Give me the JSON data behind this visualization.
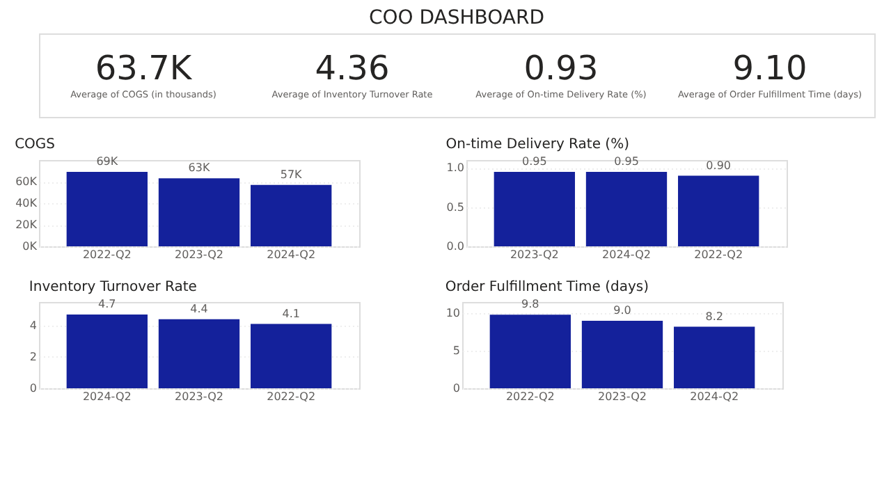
{
  "chart_data": [
    {
      "type": "other",
      "title": "COO DASHBOARD",
      "annotations": [
        "63.7K",
        "Average of COGS (in thousands)",
        "4.36",
        "Average of Inventory Turnover Rate",
        "0.93",
        "Average of On-time Delivery Rate (%)",
        "9.10",
        "Average of Order Fulfillment Time (days)"
      ]
    },
    {
      "type": "bar",
      "title": "COGS",
      "categories": [
        "2022-Q2",
        "2023-Q2",
        "2024-Q2"
      ],
      "values": [
        69000,
        63000,
        57000
      ],
      "value_labels": [
        "69K",
        "63K",
        "57K"
      ],
      "color": "#14219b",
      "ylim": [
        0,
        80000
      ],
      "yticks": [
        {
          "value": 0,
          "label": "0K"
        },
        {
          "value": 20000,
          "label": "20K"
        },
        {
          "value": 40000,
          "label": "40K"
        },
        {
          "value": 60000,
          "label": "60K"
        }
      ],
      "grid": "y"
    },
    {
      "type": "bar",
      "title": "On-time Delivery Rate (%)",
      "categories": [
        "2023-Q2",
        "2024-Q2",
        "2022-Q2"
      ],
      "values": [
        0.95,
        0.95,
        0.9
      ],
      "value_labels": [
        "0.95",
        "0.95",
        "0.90"
      ],
      "color": "#14219b",
      "ylim": [
        0,
        1.1
      ],
      "yticks": [
        {
          "value": 0,
          "label": "0.0"
        },
        0.5,
        {
          "value": 1,
          "label": "1.0"
        }
      ],
      "grid": "y"
    },
    {
      "type": "bar",
      "title": "Inventory Turnover Rate",
      "categories": [
        "2024-Q2",
        "2023-Q2",
        "2022-Q2"
      ],
      "values": [
        4.7,
        4.4,
        4.1
      ],
      "value_labels": [
        "4.7",
        "4.4",
        "4.1"
      ],
      "color": "#14219b",
      "ylim": [
        0,
        5.5
      ],
      "yticks": [
        0,
        2,
        4
      ],
      "grid": "y"
    },
    {
      "type": "bar",
      "title": "Order Fulfillment Time (days)",
      "categories": [
        "2022-Q2",
        "2023-Q2",
        "2024-Q2"
      ],
      "values": [
        9.8,
        9.0,
        8.2
      ],
      "value_labels": [
        "9.8",
        "9.0",
        "8.2"
      ],
      "color": "#14219b",
      "ylim": [
        0,
        11.5
      ],
      "yticks": [
        0,
        5,
        10
      ],
      "grid": "y"
    }
  ]
}
